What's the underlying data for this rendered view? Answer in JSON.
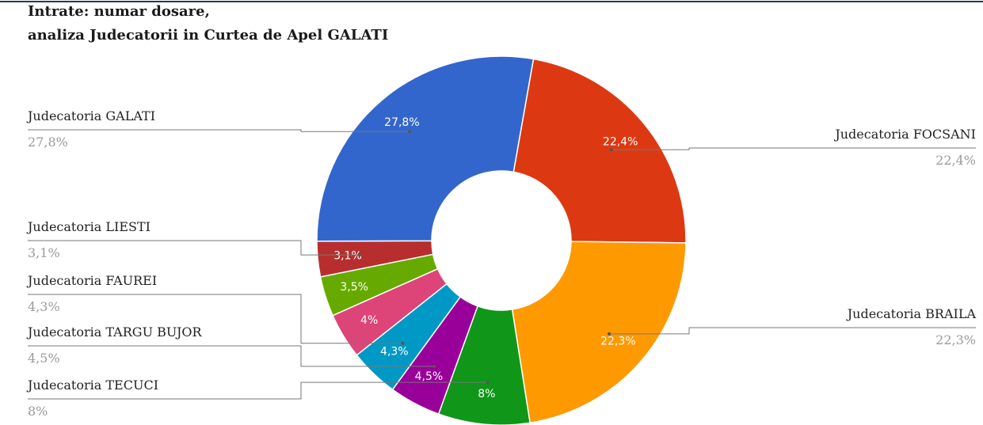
{
  "chart_data": {
    "type": "donut",
    "title": [
      "Intrate: numar dosare,",
      "analiza Judecatorii in Curtea de Apel GALATI"
    ],
    "values": [
      22.4,
      22.3,
      8,
      4.5,
      4.3,
      4,
      3.5,
      3.1,
      27.8
    ],
    "value_labels": [
      "22,4%",
      "22,3%",
      "8%",
      "4,5%",
      "4,3%",
      "4%",
      "3,5%",
      "3,1%",
      "27,8%"
    ],
    "colors": [
      "#dc3912",
      "#ff9900",
      "#109618",
      "#990099",
      "#0099c6",
      "#dd4477",
      "#66aa00",
      "#b82e2e",
      "#3366cc"
    ],
    "callouts": [
      {
        "label": "Judecatoria GALATI",
        "value": 27.8,
        "value_label": "27,8%"
      },
      {
        "label": "Judecatoria FOCSANI",
        "value": 22.4,
        "value_label": "22,4%"
      },
      {
        "label": "Judecatoria BRAILA",
        "value": 22.3,
        "value_label": "22,3%"
      },
      {
        "label": "Judecatoria LIESTI",
        "value": 3.1,
        "value_label": "3,1%"
      },
      {
        "label": "Judecatoria FAUREI",
        "value": 4.3,
        "value_label": "4,3%"
      },
      {
        "label": "Judecatoria TARGU BUJOR",
        "value": 4.5,
        "value_label": "4,5%"
      },
      {
        "label": "Judecatoria TECUCI",
        "value": 8,
        "value_label": "8%"
      }
    ]
  }
}
